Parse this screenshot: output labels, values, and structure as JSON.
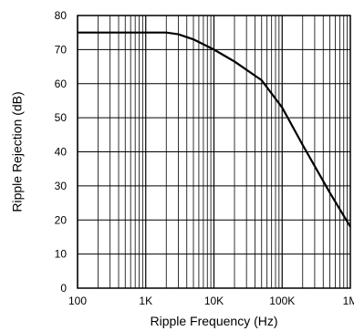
{
  "chart_data": {
    "type": "line",
    "title": "",
    "xlabel": "Ripple Frequency (Hz)",
    "ylabel": "Ripple Rejection (dB)",
    "x_scale": "log",
    "xlim": [
      100,
      1000000
    ],
    "ylim": [
      0,
      80
    ],
    "x_ticks": [
      {
        "value": 100,
        "label": "100"
      },
      {
        "value": 1000,
        "label": "1K"
      },
      {
        "value": 10000,
        "label": "10K"
      },
      {
        "value": 100000,
        "label": "100K"
      },
      {
        "value": 1000000,
        "label": "1M"
      }
    ],
    "y_ticks": [
      {
        "value": 0,
        "label": "0"
      },
      {
        "value": 10,
        "label": "10"
      },
      {
        "value": 20,
        "label": "20"
      },
      {
        "value": 30,
        "label": "30"
      },
      {
        "value": 40,
        "label": "40"
      },
      {
        "value": 50,
        "label": "50"
      },
      {
        "value": 60,
        "label": "60"
      },
      {
        "value": 70,
        "label": "70"
      },
      {
        "value": 80,
        "label": "80"
      }
    ],
    "grid": true,
    "series": [
      {
        "color": "#000000",
        "points": [
          {
            "x": 100,
            "y": 75
          },
          {
            "x": 1000,
            "y": 75
          },
          {
            "x": 2000,
            "y": 75
          },
          {
            "x": 3000,
            "y": 74.5
          },
          {
            "x": 5000,
            "y": 73
          },
          {
            "x": 10000,
            "y": 70
          },
          {
            "x": 20000,
            "y": 66.5
          },
          {
            "x": 50000,
            "y": 61
          },
          {
            "x": 100000,
            "y": 53
          },
          {
            "x": 200000,
            "y": 42
          },
          {
            "x": 500000,
            "y": 28
          },
          {
            "x": 1000000,
            "y": 18
          }
        ]
      }
    ]
  }
}
